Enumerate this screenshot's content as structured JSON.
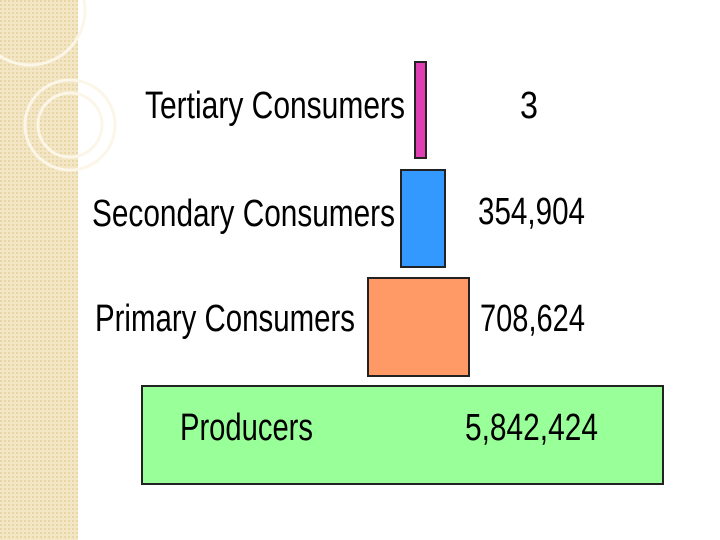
{
  "levels": [
    {
      "label": "Tertiary Consumers",
      "value": "3"
    },
    {
      "label": "Secondary Consumers",
      "value": "354,904"
    },
    {
      "label": "Primary Consumers",
      "value": "708,624"
    },
    {
      "label": "Producers",
      "value": "5,842,424"
    }
  ]
}
